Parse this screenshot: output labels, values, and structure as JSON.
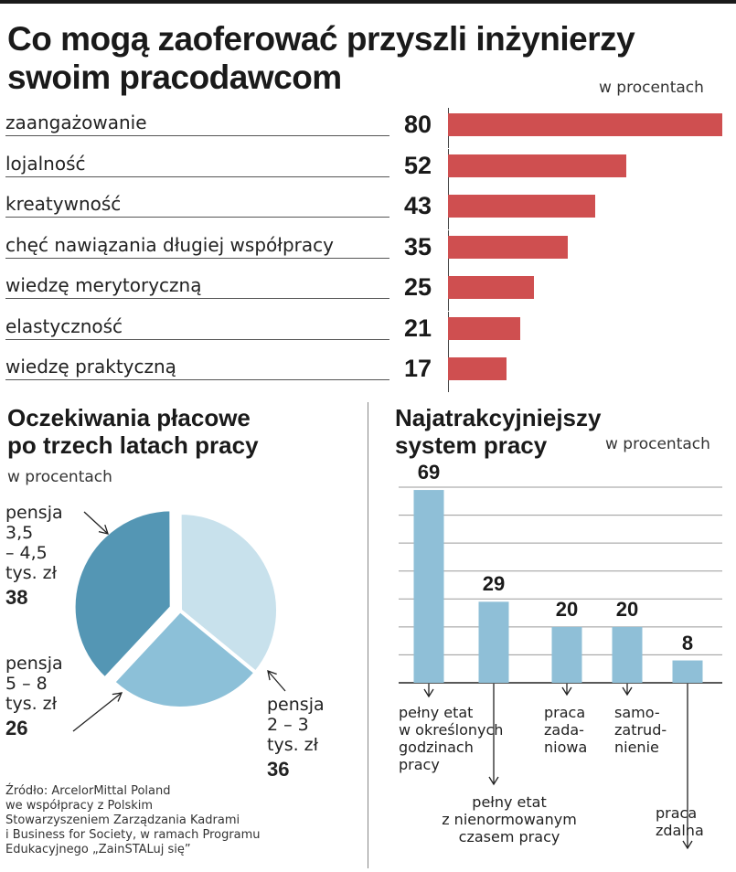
{
  "title_lines": [
    "Co mogą zaoferować przyszli inżynierzy",
    "swoim pracodawcom"
  ],
  "unit_label": "w procentach",
  "colors": {
    "red_bar": "#cf4f50",
    "blue_bar": "#8fbfd7",
    "pie_dark": "#5496b4",
    "pie_mid": "#8cc0d8",
    "pie_light": "#c8e1ec"
  },
  "chart_data": [
    {
      "type": "bar",
      "orientation": "horizontal",
      "title": "Co mogą zaoferować przyszli inżynierzy swoim pracodawcom",
      "unit": "w procentach",
      "categories": [
        "zaangażowanie",
        "lojalność",
        "kreatywność",
        "chęć nawiązania długiej współpracy",
        "wiedzę merytoryczną",
        "elastyczność",
        "wiedzę praktyczną"
      ],
      "values": [
        80,
        52,
        43,
        35,
        25,
        21,
        17
      ],
      "value_labels": [
        "80",
        "52",
        "43",
        "35",
        "25",
        "21",
        "17"
      ],
      "xlim": [
        0,
        80
      ]
    },
    {
      "type": "pie",
      "title": "Oczekiwania płacowe po trzech latach pracy",
      "unit": "w procentach",
      "slices": [
        {
          "label_lines": [
            "pensja",
            "3,5",
            "– 4,5",
            "tys. zł"
          ],
          "label": "pensja 3,5 – 4,5 tys. zł",
          "value": 38,
          "value_label": "38",
          "color": "#5496b4"
        },
        {
          "label_lines": [
            "pensja",
            "2 – 3",
            "tys. zł"
          ],
          "label": "pensja 2 – 3 tys. zł",
          "value": 36,
          "value_label": "36",
          "color": "#c8e1ec"
        },
        {
          "label_lines": [
            "pensja",
            "5 – 8",
            "tys. zł"
          ],
          "label": "pensja 5 – 8 tys. zł",
          "value": 26,
          "value_label": "26",
          "color": "#8cc0d8"
        }
      ]
    },
    {
      "type": "bar",
      "orientation": "vertical",
      "title": "Najatrakcyjniejszy system pracy",
      "unit": "w procentach",
      "categories": [
        "pełny etat w określonych godzinach pracy",
        "pełny etat z nienormowanym czasem pracy",
        "praca zadaniowa",
        "samozatrudnienie",
        "praca zdalna"
      ],
      "values": [
        69,
        29,
        20,
        20,
        8
      ],
      "value_labels": [
        "69",
        "29",
        "20",
        "20",
        "8"
      ],
      "category_label_lines": [
        [
          "pełny etat",
          "w określonych",
          "godzinach",
          "pracy"
        ],
        [
          "pełny etat",
          "z nienormowanym",
          "czasem pracy"
        ],
        [
          "praca",
          "zada-",
          "niowa"
        ],
        [
          "samo-",
          "zatrud-",
          "nienie"
        ],
        [
          "praca",
          "zdalna"
        ]
      ],
      "ylim": [
        0,
        70
      ],
      "grid": true
    }
  ],
  "source_lines": [
    "Źródło: ArcelorMittal Poland",
    "we współpracy z Polskim",
    "Stowarzyszeniem Zarządzania Kadrami",
    "i Business for Society, w ramach Programu",
    "Edukacyjnego „ZainSTALuj się”"
  ]
}
